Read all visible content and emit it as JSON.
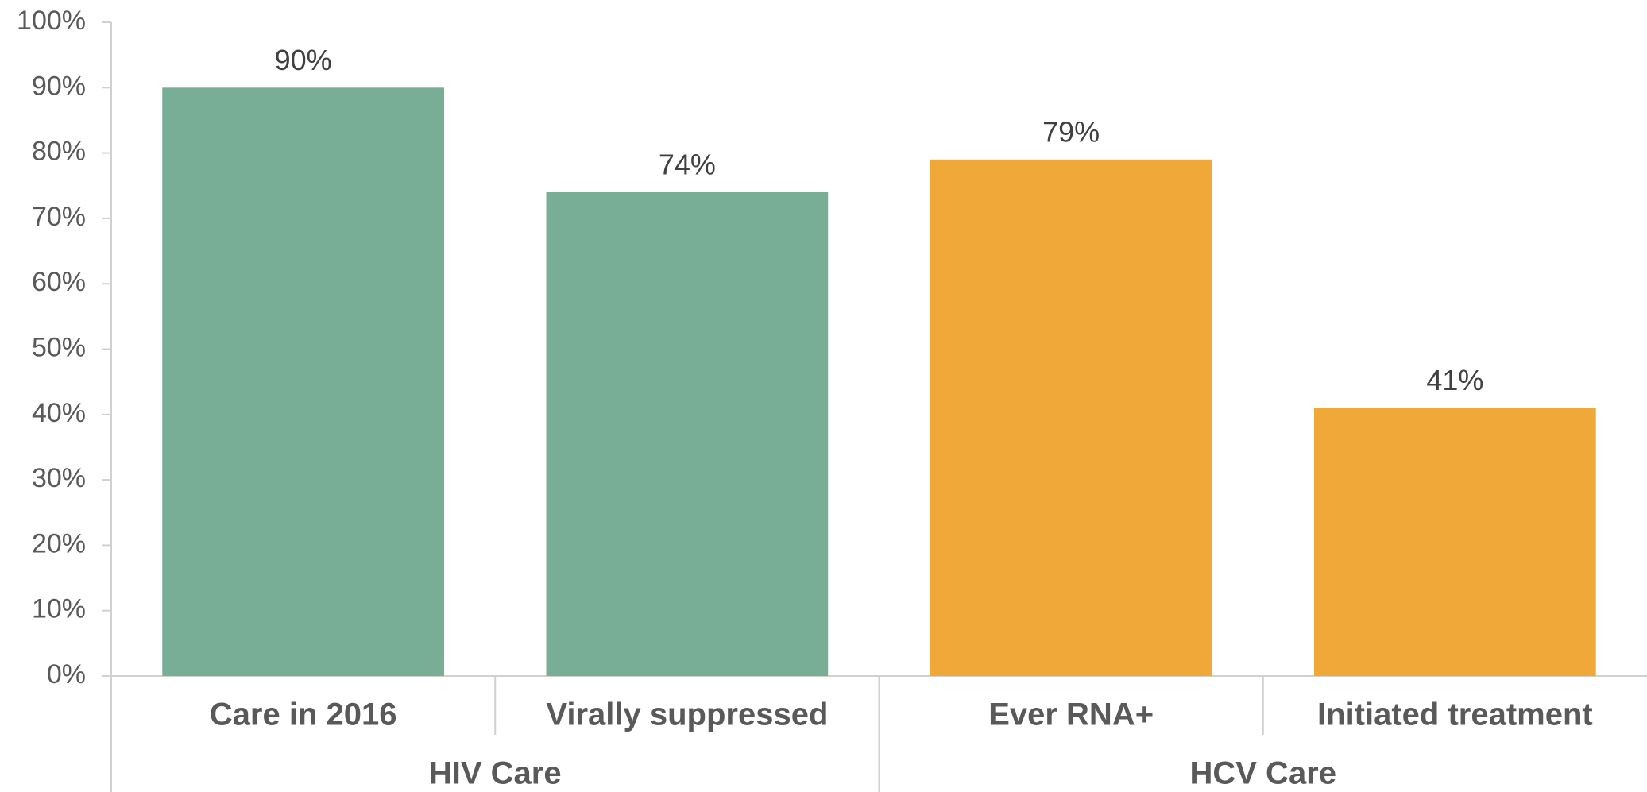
{
  "chart_data": {
    "type": "bar",
    "categories": [
      "Care in 2016",
      "Virally suppressed",
      "Ever RNA+",
      "Initiated treatment"
    ],
    "series": [
      {
        "name": "HIV Care",
        "color": "#78ad96",
        "values": [
          90,
          74,
          null,
          null
        ],
        "value_labels": [
          "90%",
          "74%",
          null,
          null
        ]
      },
      {
        "name": "HCV Care",
        "color": "#f0a839",
        "values": [
          null,
          null,
          79,
          41
        ],
        "value_labels": [
          null,
          null,
          "79%",
          "41%"
        ]
      }
    ],
    "ylim": [
      0,
      100
    ],
    "yticks": [
      {
        "value": 0,
        "label": "0%"
      },
      {
        "value": 10,
        "label": "10%"
      },
      {
        "value": 20,
        "label": "20%"
      },
      {
        "value": 30,
        "label": "30%"
      },
      {
        "value": 40,
        "label": "40%"
      },
      {
        "value": 50,
        "label": "50%"
      },
      {
        "value": 60,
        "label": "60%"
      },
      {
        "value": 70,
        "label": "70%"
      },
      {
        "value": 80,
        "label": "80%"
      },
      {
        "value": 90,
        "label": "90%"
      },
      {
        "value": 100,
        "label": "100%"
      }
    ],
    "grid": false
  }
}
